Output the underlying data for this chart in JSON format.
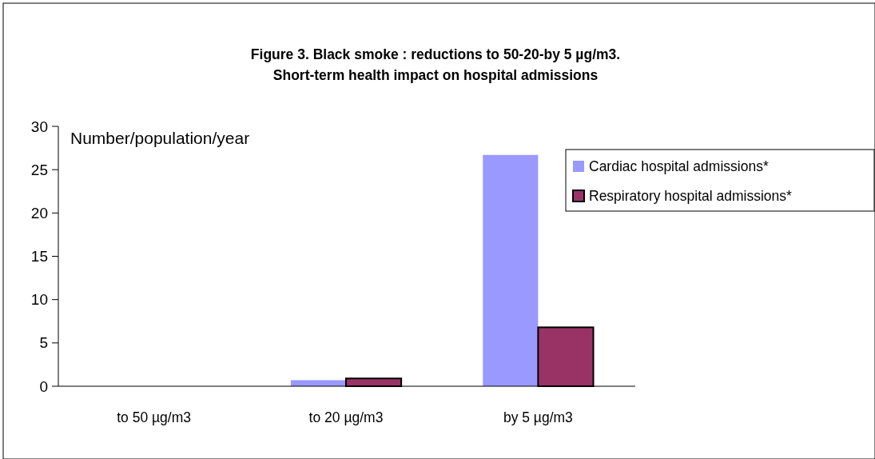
{
  "chart_data": {
    "type": "bar",
    "title": "Figure 3. Black smoke : reductions to 50-20-by 5 µg/m3.\nShort-term health impact on hospital admissions",
    "ylabel": "Number/population/year",
    "categories": [
      "to 50 µg/m3",
      "to 20 µg/m3",
      "by 5 µg/m3"
    ],
    "series": [
      {
        "name": "Cardiac hospital admissions*",
        "color": "#9999ff",
        "values": [
          0,
          0.7,
          26.7
        ]
      },
      {
        "name": "Respiratory hospital admissions*",
        "color": "#993366",
        "values": [
          0,
          0.9,
          6.8
        ]
      }
    ],
    "ylim": [
      0,
      30
    ],
    "yticks": [
      0,
      5,
      10,
      15,
      20,
      25,
      30
    ],
    "grid": false,
    "legend": "right"
  }
}
